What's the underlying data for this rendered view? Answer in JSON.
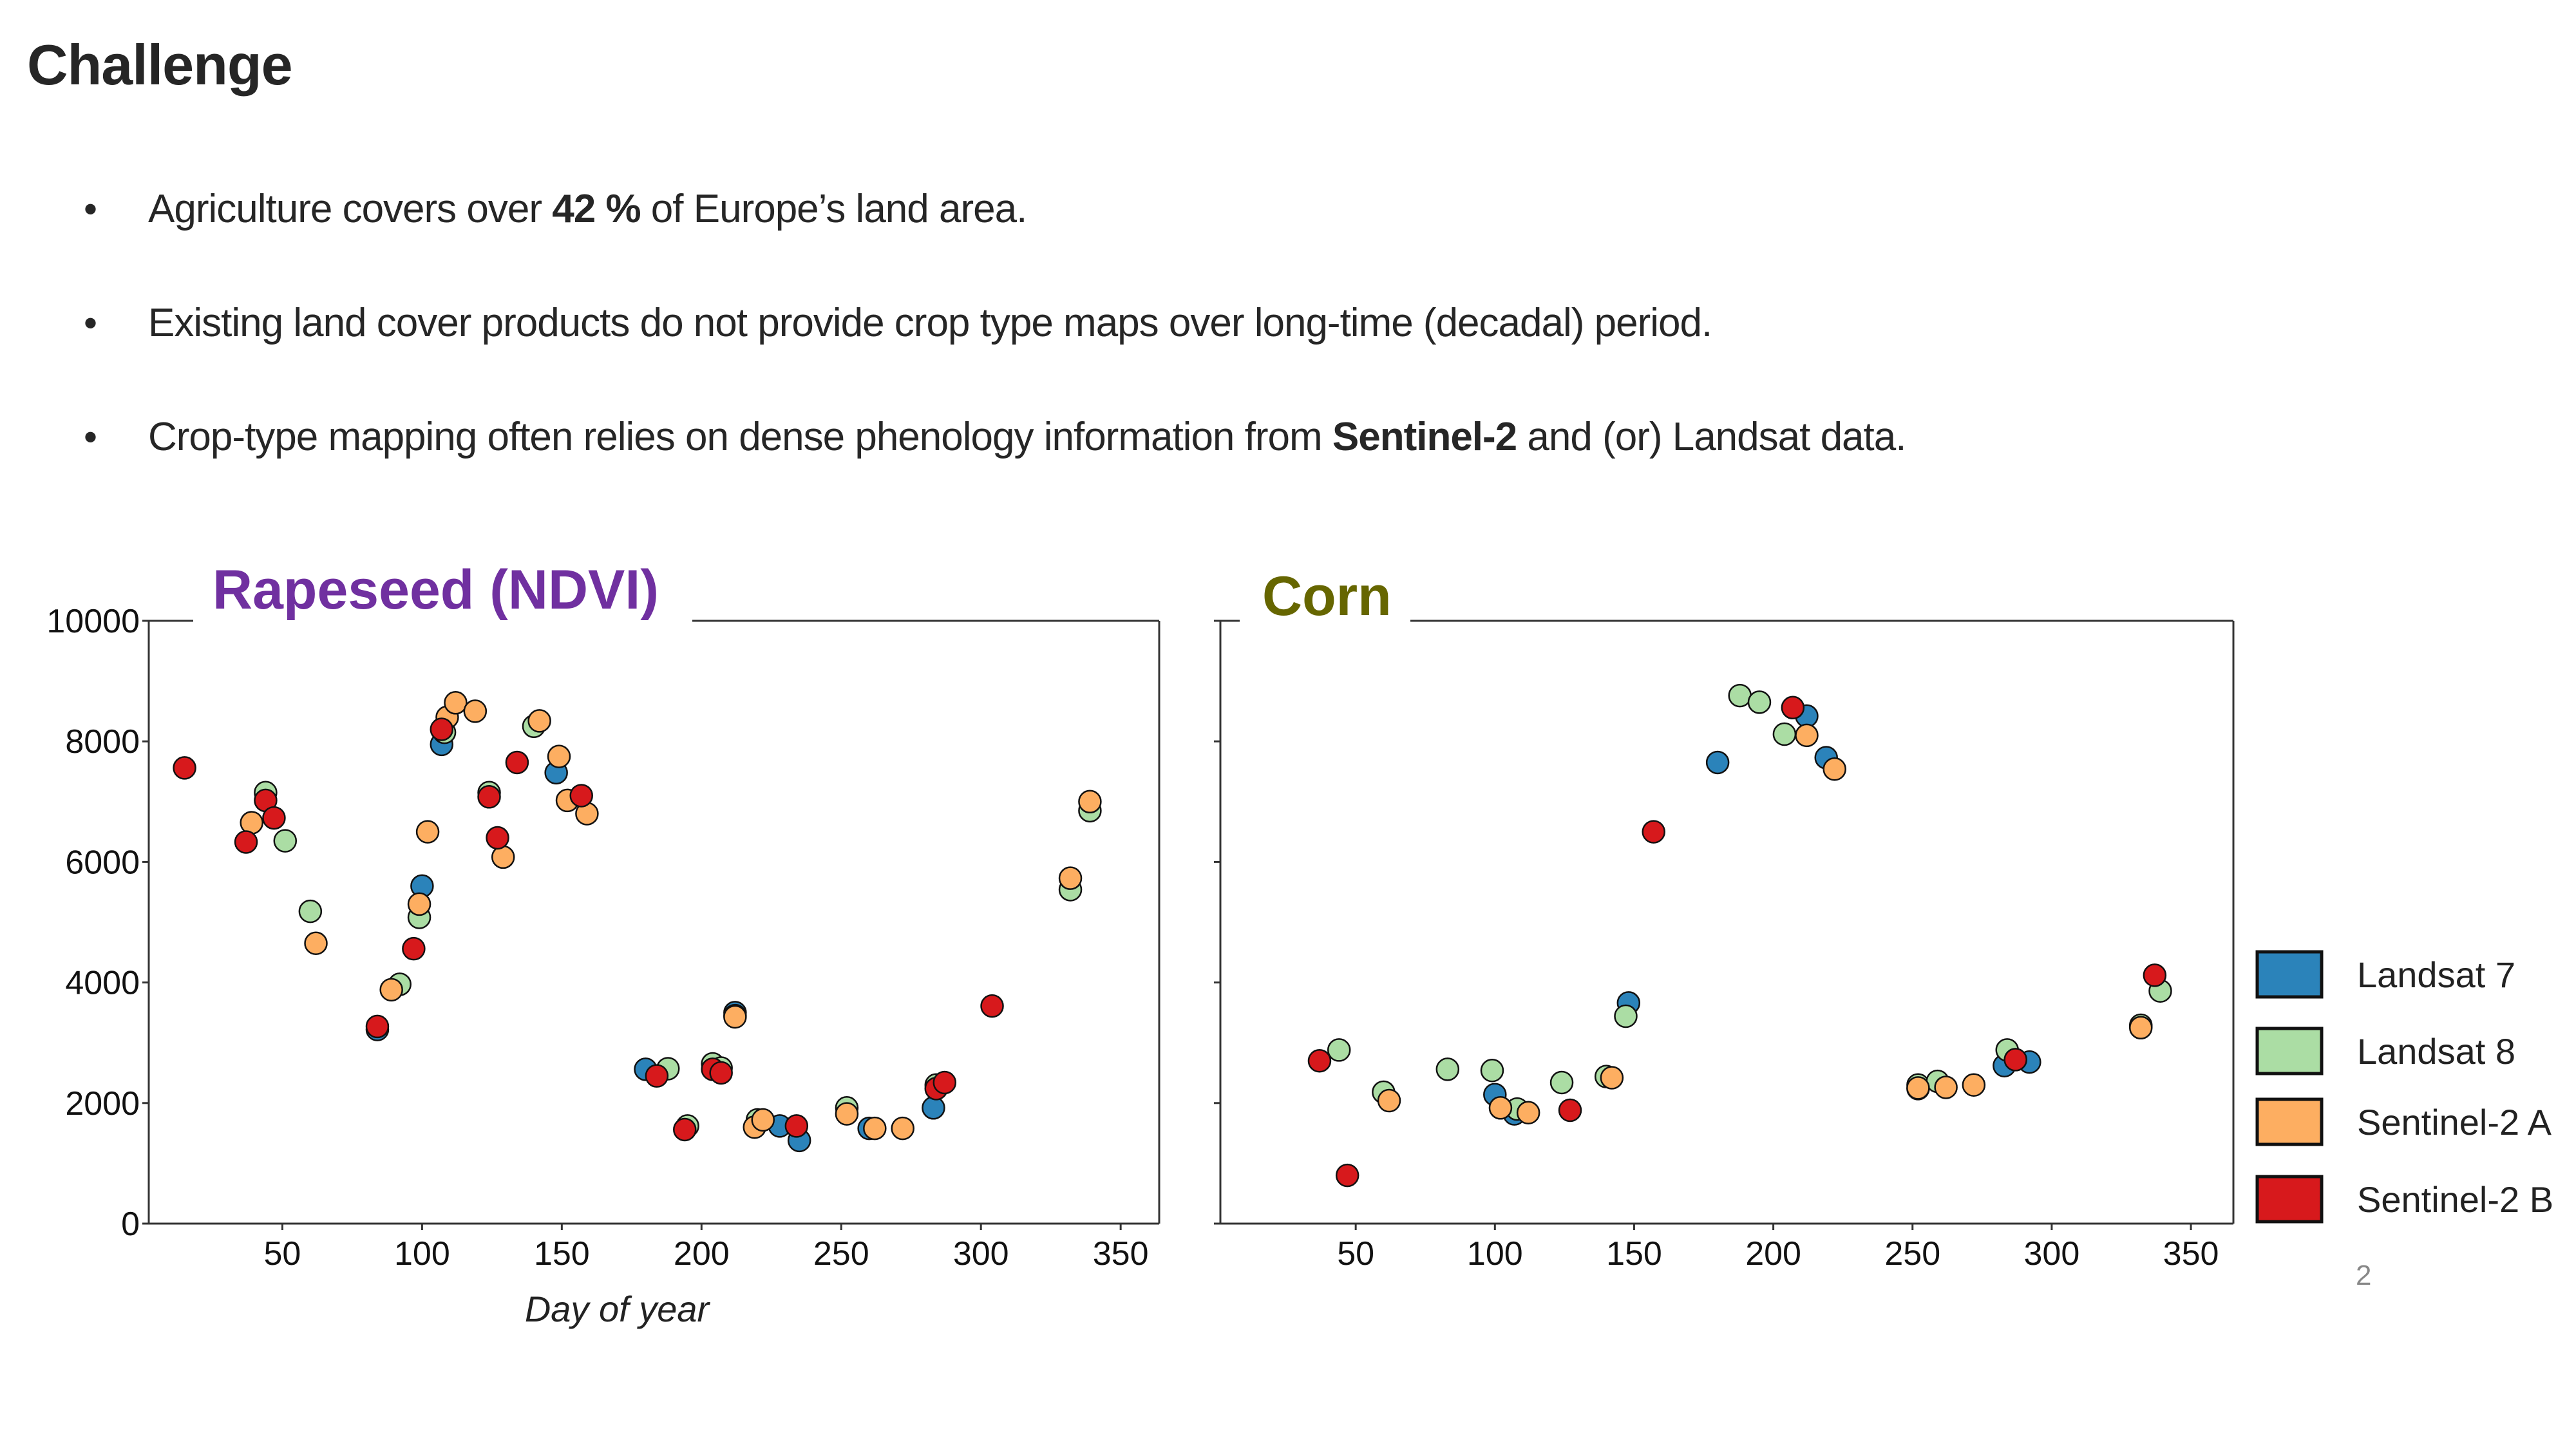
{
  "slide": {
    "title": "Challenge",
    "bullets": [
      {
        "parts": [
          {
            "t": "Agriculture covers over ",
            "b": false
          },
          {
            "t": "42 %",
            "b": true
          },
          {
            "t": " of Europe’s land area.",
            "b": false
          }
        ]
      },
      {
        "parts": [
          {
            "t": "Existing land cover products do not provide crop type maps over long-time (decadal) period.",
            "b": false
          }
        ]
      },
      {
        "parts": [
          {
            "t": "Crop-type mapping often relies on dense phenology information from ",
            "b": false
          },
          {
            "t": "Sentinel-2",
            "b": true
          },
          {
            "t": " and (or) Landsat data.",
            "b": false
          }
        ]
      }
    ],
    "bullet_glyph": "•",
    "page_number": "2"
  },
  "legend": {
    "placement": "right",
    "items": [
      {
        "label": "Landsat 7",
        "color": "#2b83ba"
      },
      {
        "label": "Landsat 8",
        "color": "#abdda4"
      },
      {
        "label": "Sentinel-2 A",
        "color": "#fdae61"
      },
      {
        "label": "Sentinel-2 B",
        "color": "#d7191c"
      }
    ]
  },
  "chart_data": [
    {
      "type": "scatter",
      "title": "Rapeseed (NDVI)",
      "title_color": "#7030a0",
      "xlabel": "Day of year",
      "ylabel": "",
      "xlim": [
        2,
        365
      ],
      "ylim": [
        0,
        10000
      ],
      "xticks": [
        50,
        100,
        150,
        200,
        250,
        300,
        350
      ],
      "yticks": [
        0,
        2000,
        4000,
        6000,
        8000,
        10000
      ],
      "show_y_tick_labels": true,
      "grid": false,
      "series": [
        {
          "name": "Landsat 7",
          "color": "#2b83ba",
          "points": [
            [
              84,
              3220
            ],
            [
              100,
              5600
            ],
            [
              107,
              7950
            ],
            [
              148,
              7480
            ],
            [
              180,
              2560
            ],
            [
              212,
              3500
            ],
            [
              228,
              1620
            ],
            [
              235,
              1380
            ],
            [
              260,
              1580
            ],
            [
              283,
              1920
            ]
          ]
        },
        {
          "name": "Landsat 8",
          "color": "#abdda4",
          "points": [
            [
              44,
              7150
            ],
            [
              51,
              6350
            ],
            [
              60,
              5180
            ],
            [
              92,
              3970
            ],
            [
              99,
              5080
            ],
            [
              108,
              8150
            ],
            [
              124,
              7150
            ],
            [
              140,
              8250
            ],
            [
              188,
              2570
            ],
            [
              195,
              1620
            ],
            [
              204,
              2650
            ],
            [
              207,
              2580
            ],
            [
              212,
              3450
            ],
            [
              220,
              1720
            ],
            [
              252,
              1920
            ],
            [
              284,
              2300
            ],
            [
              332,
              5540
            ],
            [
              339,
              6850
            ]
          ]
        },
        {
          "name": "Sentinel-2 A",
          "color": "#fdae61",
          "points": [
            [
              39,
              6650
            ],
            [
              62,
              4650
            ],
            [
              89,
              3880
            ],
            [
              99,
              5300
            ],
            [
              102,
              6500
            ],
            [
              109,
              8400
            ],
            [
              112,
              8640
            ],
            [
              119,
              8500
            ],
            [
              129,
              6080
            ],
            [
              142,
              8340
            ],
            [
              149,
              7750
            ],
            [
              152,
              7020
            ],
            [
              159,
              6800
            ],
            [
              212,
              3430
            ],
            [
              219,
              1600
            ],
            [
              222,
              1720
            ],
            [
              252,
              1820
            ],
            [
              262,
              1580
            ],
            [
              272,
              1580
            ],
            [
              332,
              5730
            ],
            [
              339,
              7000
            ]
          ]
        },
        {
          "name": "Sentinel-2 B",
          "color": "#d7191c",
          "points": [
            [
              15,
              7560
            ],
            [
              37,
              6330
            ],
            [
              44,
              7020
            ],
            [
              47,
              6730
            ],
            [
              84,
              3270
            ],
            [
              97,
              4560
            ],
            [
              107,
              8200
            ],
            [
              124,
              7080
            ],
            [
              127,
              6400
            ],
            [
              134,
              7650
            ],
            [
              157,
              7100
            ],
            [
              184,
              2450
            ],
            [
              194,
              1560
            ],
            [
              204,
              2560
            ],
            [
              207,
              2500
            ],
            [
              234,
              1620
            ],
            [
              284,
              2240
            ],
            [
              287,
              2340
            ],
            [
              304,
              3610
            ]
          ]
        }
      ]
    },
    {
      "type": "scatter",
      "title": "Corn",
      "title_color": "#666600",
      "xlabel": "",
      "ylabel": "",
      "xlim": [
        2,
        365
      ],
      "ylim": [
        0,
        10000
      ],
      "xticks": [
        50,
        100,
        150,
        200,
        250,
        300,
        350
      ],
      "yticks": [
        0,
        2000,
        4000,
        6000,
        8000,
        10000
      ],
      "show_y_tick_labels": false,
      "grid": false,
      "series": [
        {
          "name": "Landsat 7",
          "color": "#2b83ba",
          "points": [
            [
              100,
              2140
            ],
            [
              107,
              1820
            ],
            [
              148,
              3660
            ],
            [
              180,
              7650
            ],
            [
              212,
              8420
            ],
            [
              219,
              7730
            ],
            [
              252,
              2240
            ],
            [
              283,
              2620
            ],
            [
              292,
              2680
            ],
            [
              332,
              3270
            ]
          ]
        },
        {
          "name": "Landsat 8",
          "color": "#abdda4",
          "points": [
            [
              44,
              2880
            ],
            [
              60,
              2180
            ],
            [
              83,
              2560
            ],
            [
              99,
              2540
            ],
            [
              108,
              1900
            ],
            [
              124,
              2340
            ],
            [
              140,
              2440
            ],
            [
              147,
              3440
            ],
            [
              188,
              8760
            ],
            [
              195,
              8650
            ],
            [
              204,
              8120
            ],
            [
              252,
              2300
            ],
            [
              259,
              2360
            ],
            [
              284,
              2880
            ],
            [
              332,
              3290
            ],
            [
              339,
              3860
            ]
          ]
        },
        {
          "name": "Sentinel-2 A",
          "color": "#fdae61",
          "points": [
            [
              62,
              2040
            ],
            [
              102,
              1920
            ],
            [
              112,
              1840
            ],
            [
              142,
              2420
            ],
            [
              212,
              8100
            ],
            [
              222,
              7540
            ],
            [
              252,
              2250
            ],
            [
              262,
              2260
            ],
            [
              272,
              2300
            ],
            [
              332,
              3250
            ]
          ]
        },
        {
          "name": "Sentinel-2 B",
          "color": "#d7191c",
          "points": [
            [
              37,
              2700
            ],
            [
              47,
              800
            ],
            [
              127,
              1880
            ],
            [
              157,
              6500
            ],
            [
              207,
              8560
            ],
            [
              287,
              2720
            ],
            [
              337,
              4120
            ]
          ]
        }
      ]
    }
  ]
}
